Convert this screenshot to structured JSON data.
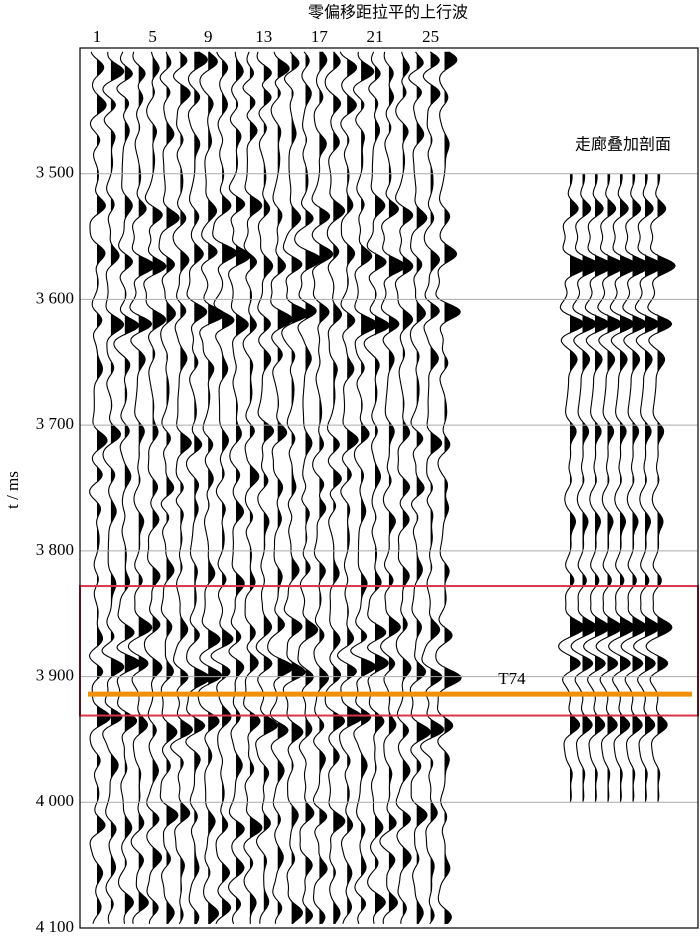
{
  "chart_data": {
    "type": "seismic",
    "title": "零偏移距拉平的上行波",
    "ylabel": "t / ms",
    "categories": [
      "1",
      "5",
      "9",
      "13",
      "17",
      "21",
      "25"
    ],
    "ylim": [
      3400,
      4100
    ],
    "yticks": [
      {
        "value": 3500,
        "label": "3 500"
      },
      {
        "value": 3600,
        "label": "3 600"
      },
      {
        "value": 3700,
        "label": "3 700"
      },
      {
        "value": 3800,
        "label": "3 800"
      },
      {
        "value": 3900,
        "label": "3 900"
      },
      {
        "value": 4000,
        "label": "4 000"
      },
      {
        "value": 4100,
        "label": "4 100"
      }
    ],
    "grid": true,
    "corridor_label": "走廊叠加剖面",
    "corridor_ylim": [
      3500,
      4000
    ],
    "highlight_ylim": [
      3828,
      3931
    ],
    "highlight_color": "#d9344a",
    "horizon": {
      "label": "T74",
      "value": 3914,
      "color": "#f0900a"
    }
  }
}
